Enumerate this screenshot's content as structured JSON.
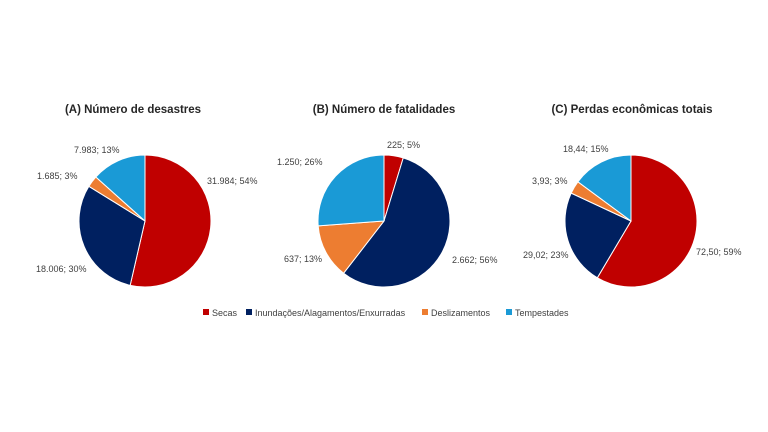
{
  "chart_data": [
    {
      "type": "pie",
      "title": "(A) Número de desastres",
      "slices": [
        {
          "name": "Secas",
          "value": 31984,
          "label": "31.984; 54%"
        },
        {
          "name": "Inundações/Alagamentos/Enxurradas",
          "value": 18006,
          "label": "18.006; 30%"
        },
        {
          "name": "Deslizamentos",
          "value": 1685,
          "label": "1.685; 3%"
        },
        {
          "name": "Tempestades",
          "value": 7983,
          "label": "7.983; 13%"
        }
      ]
    },
    {
      "type": "pie",
      "title": "(B) Número de fatalidades",
      "slices": [
        {
          "name": "Secas",
          "value": 225,
          "label": "225; 5%"
        },
        {
          "name": "Inundações/Alagamentos/Enxurradas",
          "value": 2662,
          "label": "2.662; 56%"
        },
        {
          "name": "Deslizamentos",
          "value": 637,
          "label": "637; 13%"
        },
        {
          "name": "Tempestades",
          "value": 1250,
          "label": "1.250; 26%"
        }
      ]
    },
    {
      "type": "pie",
      "title": "(C) Perdas econômicas totais",
      "slices": [
        {
          "name": "Secas",
          "value": 72.5,
          "label": "72,50; 59%"
        },
        {
          "name": "Inundações/Alagamentos/Enxurradas",
          "value": 29.02,
          "label": "29,02; 23%"
        },
        {
          "name": "Deslizamentos",
          "value": 3.93,
          "label": "3,93; 3%"
        },
        {
          "name": "Tempestades",
          "value": 18.44,
          "label": "18,44; 15%"
        }
      ]
    }
  ],
  "legend": {
    "position": "bottom",
    "items": [
      {
        "name": "Secas",
        "color": "#C00000"
      },
      {
        "name": "Inundações/Alagamentos/Enxurradas",
        "color": "#002060"
      },
      {
        "name": "Deslizamentos",
        "color": "#ED7D31"
      },
      {
        "name": "Tempestades",
        "color": "#1A9AD6"
      }
    ]
  }
}
